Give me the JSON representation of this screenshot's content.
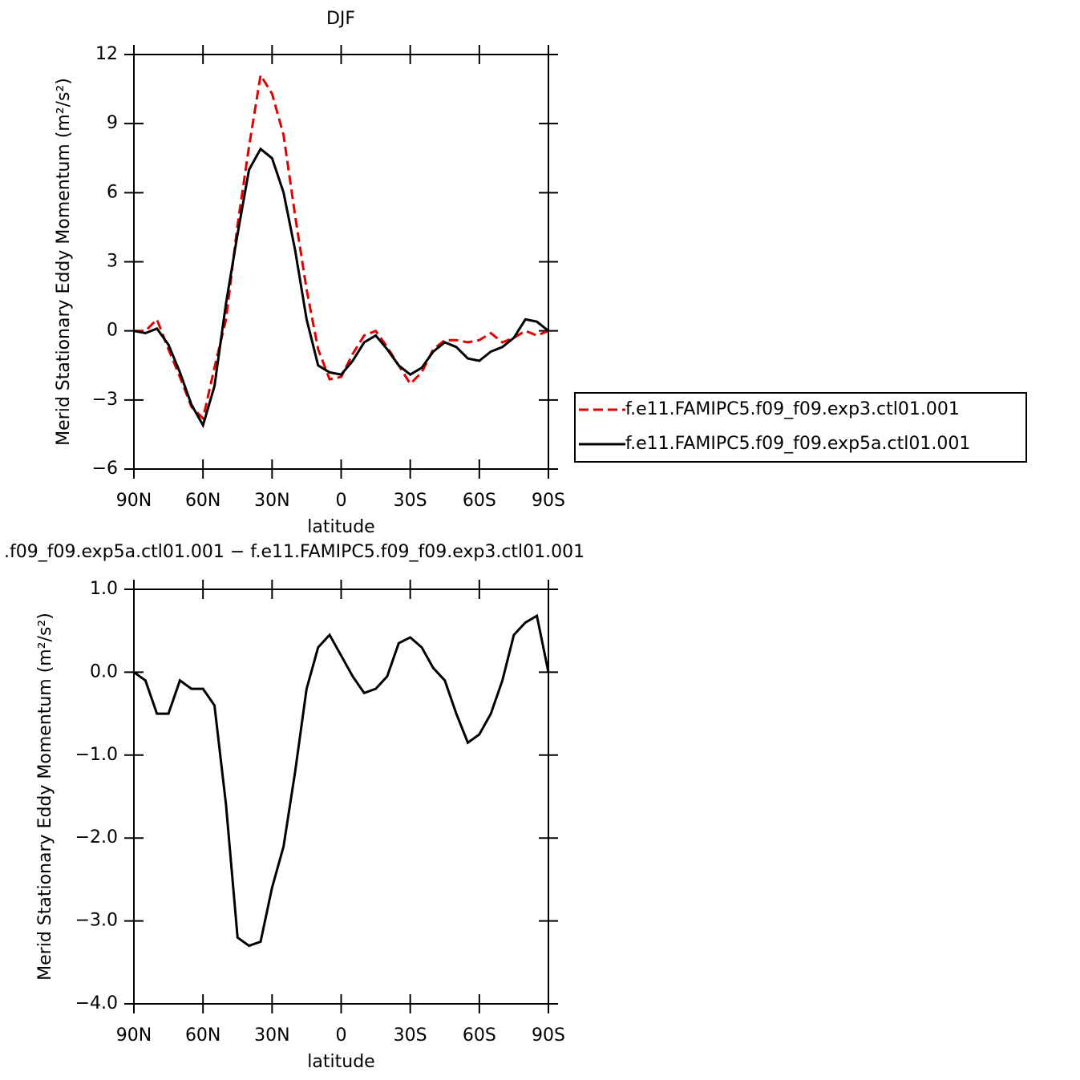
{
  "chart_data": [
    {
      "type": "line",
      "title": "DJF",
      "xlabel": "latitude",
      "ylabel": "Merid Stationary Eddy Momentum (m²/s²)",
      "x": [
        90,
        85,
        80,
        75,
        70,
        65,
        60,
        55,
        50,
        45,
        40,
        35,
        30,
        25,
        20,
        15,
        10,
        5,
        0,
        -5,
        -10,
        -15,
        -20,
        -25,
        -30,
        -35,
        -40,
        -45,
        -50,
        -55,
        -60,
        -65,
        -70,
        -75,
        -80,
        -85,
        -90
      ],
      "xlim": [
        90,
        -90
      ],
      "xticks": [
        {
          "value": 90,
          "label": "90N"
        },
        {
          "value": 60,
          "label": "60N"
        },
        {
          "value": 30,
          "label": "30N"
        },
        0,
        {
          "value": -30,
          "label": "30S"
        },
        {
          "value": -60,
          "label": "60S"
        },
        {
          "value": -90,
          "label": "90S"
        }
      ],
      "ylim": [
        -6,
        12
      ],
      "yticks": [
        {
          "value": -6,
          "label": "−6"
        },
        {
          "value": -3,
          "label": "−3"
        },
        0,
        3,
        6,
        9,
        12
      ],
      "legend": "right",
      "series": [
        {
          "name": "f.e11.FAMIPC5.f09_f09.exp3.ctl01.001",
          "color": "#e00000",
          "dash": true,
          "values": [
            0,
            0,
            0.5,
            -0.8,
            -2,
            -3.3,
            -3.8,
            -1.6,
            0.5,
            4.6,
            8,
            11.1,
            10.3,
            8.5,
            5,
            1.8,
            -0.8,
            -2.1,
            -2,
            -1,
            -0.2,
            0,
            -0.7,
            -1.5,
            -2.3,
            -1.8,
            -0.8,
            -0.4,
            -0.4,
            -0.5,
            -0.4,
            -0.1,
            -0.5,
            -0.3,
            0,
            -0.2,
            0
          ]
        },
        {
          "name": "f.e11.FAMIPC5.f09_f09.exp5a.ctl01.001",
          "color": "#000000",
          "dash": false,
          "values": [
            0,
            -0.1,
            0.1,
            -0.6,
            -1.8,
            -3.2,
            -4.1,
            -2.4,
            1.2,
            4.2,
            7,
            7.9,
            7.5,
            6,
            3.5,
            0.5,
            -1.5,
            -1.8,
            -1.9,
            -1.3,
            -0.5,
            -0.2,
            -0.8,
            -1.5,
            -1.9,
            -1.6,
            -0.9,
            -0.5,
            -0.7,
            -1.2,
            -1.3,
            -0.9,
            -0.7,
            -0.3,
            0.5,
            0.4,
            0
          ]
        }
      ]
    },
    {
      "type": "line",
      "title": ".f09_f09.exp5a.ctl01.001  −  f.e11.FAMIPC5.f09_f09.exp3.ctl01.001",
      "xlabel": "latitude",
      "ylabel": "Merid Stationary Eddy Momentum (m²/s²)",
      "x": [
        90,
        85,
        80,
        75,
        70,
        65,
        60,
        55,
        50,
        45,
        40,
        35,
        30,
        25,
        20,
        15,
        10,
        5,
        0,
        -5,
        -10,
        -15,
        -20,
        -25,
        -30,
        -35,
        -40,
        -45,
        -50,
        -55,
        -60,
        -65,
        -70,
        -75,
        -80,
        -85,
        -90
      ],
      "xlim": [
        90,
        -90
      ],
      "xticks": [
        {
          "value": 90,
          "label": "90N"
        },
        {
          "value": 60,
          "label": "60N"
        },
        {
          "value": 30,
          "label": "30N"
        },
        0,
        {
          "value": -30,
          "label": "30S"
        },
        {
          "value": -60,
          "label": "60S"
        },
        {
          "value": -90,
          "label": "90S"
        }
      ],
      "ylim": [
        -4,
        1
      ],
      "yticks": [
        {
          "value": -4,
          "label": "−4.0"
        },
        {
          "value": -3,
          "label": "−3.0"
        },
        {
          "value": -2,
          "label": "−2.0"
        },
        {
          "value": -1,
          "label": "−1.0"
        },
        {
          "value": 0,
          "label": "0.0"
        },
        {
          "value": 1,
          "label": "1.0"
        }
      ],
      "series": [
        {
          "color": "#000000",
          "dash": false,
          "values": [
            0,
            -0.1,
            -0.5,
            -0.5,
            -0.1,
            -0.2,
            -0.2,
            -0.4,
            -1.6,
            -3.2,
            -3.3,
            -3.25,
            -2.6,
            -2.1,
            -1.2,
            -0.2,
            0.3,
            0.45,
            0.2,
            -0.05,
            -0.25,
            -0.2,
            -0.05,
            0.35,
            0.42,
            0.3,
            0.05,
            -0.1,
            -0.5,
            -0.85,
            -0.75,
            -0.5,
            -0.1,
            0.45,
            0.6,
            0.68,
            0
          ]
        }
      ]
    }
  ]
}
